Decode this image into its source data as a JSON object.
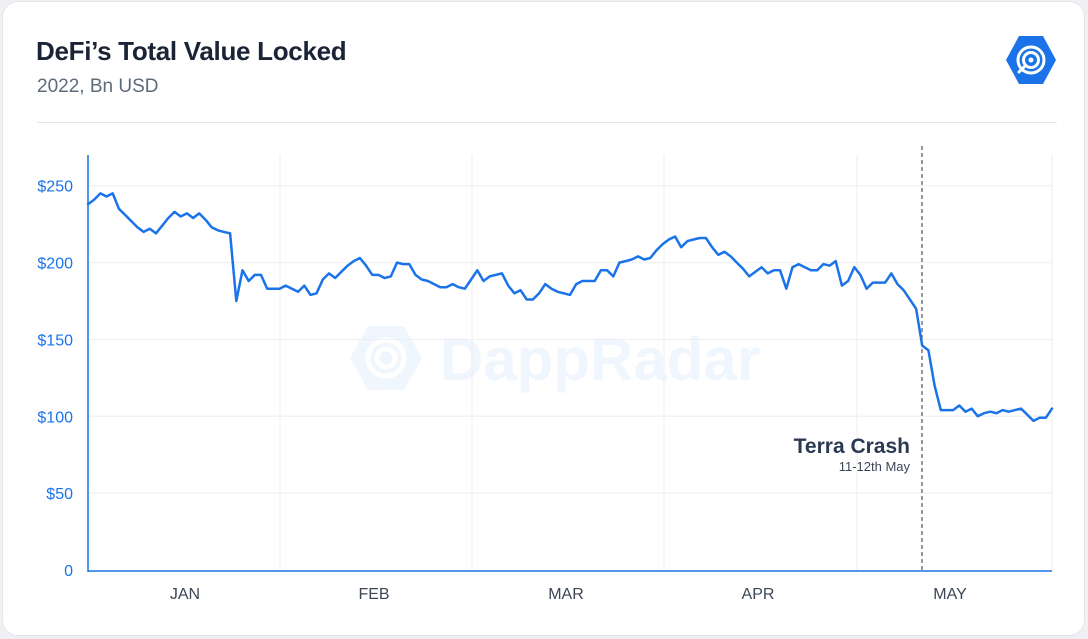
{
  "title": "DeFi’s Total Value Locked",
  "subtitle": "2022, Bn USD",
  "logo_icon": "dappradar-logo-icon",
  "watermark": "DappRadar",
  "chart_data": {
    "type": "line",
    "title": "DeFi’s Total Value Locked",
    "subtitle": "2022, Bn USD",
    "x_ticks": [
      "JAN",
      "FEB",
      "MAR",
      "APR",
      "MAY"
    ],
    "y_ticks": [
      "0",
      "$50",
      "$100",
      "$150",
      "$200",
      "$250"
    ],
    "y_tick_values": [
      0,
      50,
      100,
      150,
      200,
      250
    ],
    "ylim": [
      0,
      270
    ],
    "grid": true,
    "line_color": "#1a73e8",
    "series": [
      {
        "values": [
          238,
          241,
          245,
          243,
          245,
          235,
          231,
          227,
          223,
          220,
          222,
          219,
          224,
          229,
          233,
          230,
          232,
          229,
          232,
          228,
          223,
          221,
          220,
          219,
          175,
          195,
          188,
          192,
          192,
          183,
          183,
          183,
          185,
          183,
          181,
          185,
          179,
          180,
          189,
          193,
          190,
          194,
          198,
          201,
          203,
          198,
          192,
          192,
          190,
          191,
          200,
          199,
          199,
          192,
          189,
          188,
          186,
          184,
          184,
          186,
          184,
          183,
          189,
          195,
          188,
          191,
          192,
          193,
          185,
          180,
          182,
          176,
          176,
          180,
          186,
          183,
          181,
          180,
          179,
          186,
          188,
          188,
          188,
          195,
          195,
          191,
          200,
          201,
          202,
          204,
          202,
          203,
          208,
          212,
          215,
          217,
          210,
          214,
          215,
          216,
          216,
          210,
          205,
          207,
          204,
          200,
          196,
          191,
          194,
          197,
          193,
          195,
          195,
          183,
          197,
          199,
          197,
          195,
          195,
          199,
          198,
          201,
          185,
          188,
          197,
          192,
          183,
          187,
          187,
          187,
          193,
          186,
          182,
          176,
          170,
          146,
          143,
          120,
          104,
          104,
          104,
          107,
          103,
          105,
          100,
          102,
          103,
          102,
          104,
          103,
          104,
          105,
          101,
          97,
          99,
          99,
          105
        ]
      }
    ],
    "annotation": {
      "label": "Terra Crash",
      "sublabel": "11-12th May",
      "x_index": 135,
      "style": "dashed-vertical-line"
    }
  }
}
